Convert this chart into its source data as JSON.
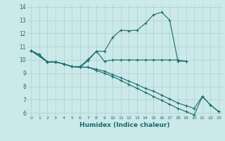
{
  "xlabel": "Humidex (Indice chaleur)",
  "xlim": [
    -0.5,
    23.5
  ],
  "ylim": [
    5.8,
    14.2
  ],
  "xticks": [
    0,
    1,
    2,
    3,
    4,
    5,
    6,
    7,
    8,
    9,
    10,
    11,
    12,
    13,
    14,
    15,
    16,
    17,
    18,
    19,
    20,
    21,
    22,
    23
  ],
  "yticks": [
    6,
    7,
    8,
    9,
    10,
    11,
    12,
    13,
    14
  ],
  "bg_color": "#cce9ea",
  "line_color": "#1a6b6b",
  "grid_color": "#aacfcf",
  "line1_x": [
    0,
    1,
    2,
    3,
    4,
    5,
    6,
    7,
    8,
    9,
    10,
    11,
    12,
    13,
    14,
    15,
    16,
    17,
    18,
    19
  ],
  "line1_y": [
    10.7,
    10.4,
    9.85,
    9.85,
    9.7,
    9.5,
    9.5,
    10.05,
    10.65,
    10.65,
    11.7,
    12.25,
    12.2,
    12.25,
    12.75,
    13.4,
    13.6,
    13.0,
    9.9,
    9.9
  ],
  "line2_x": [
    0,
    1,
    2,
    3,
    4,
    5,
    6,
    7,
    8,
    9,
    10,
    11,
    12,
    13,
    14,
    15,
    16,
    17,
    18,
    19
  ],
  "line2_y": [
    10.7,
    10.4,
    9.85,
    9.85,
    9.7,
    9.5,
    9.45,
    9.95,
    10.65,
    9.9,
    10.0,
    10.0,
    10.0,
    10.0,
    10.0,
    10.0,
    10.0,
    10.0,
    10.0,
    9.9
  ],
  "line3_x": [
    0,
    2,
    3,
    4,
    5,
    6,
    7,
    8,
    9,
    10,
    11,
    12,
    13,
    14,
    15,
    16,
    17,
    18,
    19,
    20,
    21,
    22,
    23
  ],
  "line3_y": [
    10.7,
    9.85,
    9.85,
    9.7,
    9.5,
    9.45,
    9.45,
    9.3,
    9.15,
    8.9,
    8.65,
    8.4,
    8.15,
    7.85,
    7.65,
    7.35,
    7.05,
    6.75,
    6.55,
    6.35,
    7.25,
    6.6,
    6.1
  ],
  "line4_x": [
    0,
    2,
    3,
    4,
    5,
    6,
    7,
    8,
    9,
    10,
    11,
    12,
    13,
    14,
    15,
    16,
    17,
    18,
    19,
    20,
    21,
    22,
    23
  ],
  "line4_y": [
    10.7,
    9.85,
    9.85,
    9.7,
    9.5,
    9.45,
    9.45,
    9.2,
    9.0,
    8.75,
    8.45,
    8.15,
    7.85,
    7.55,
    7.25,
    6.95,
    6.65,
    6.35,
    6.1,
    5.85,
    7.25,
    6.6,
    6.1
  ]
}
